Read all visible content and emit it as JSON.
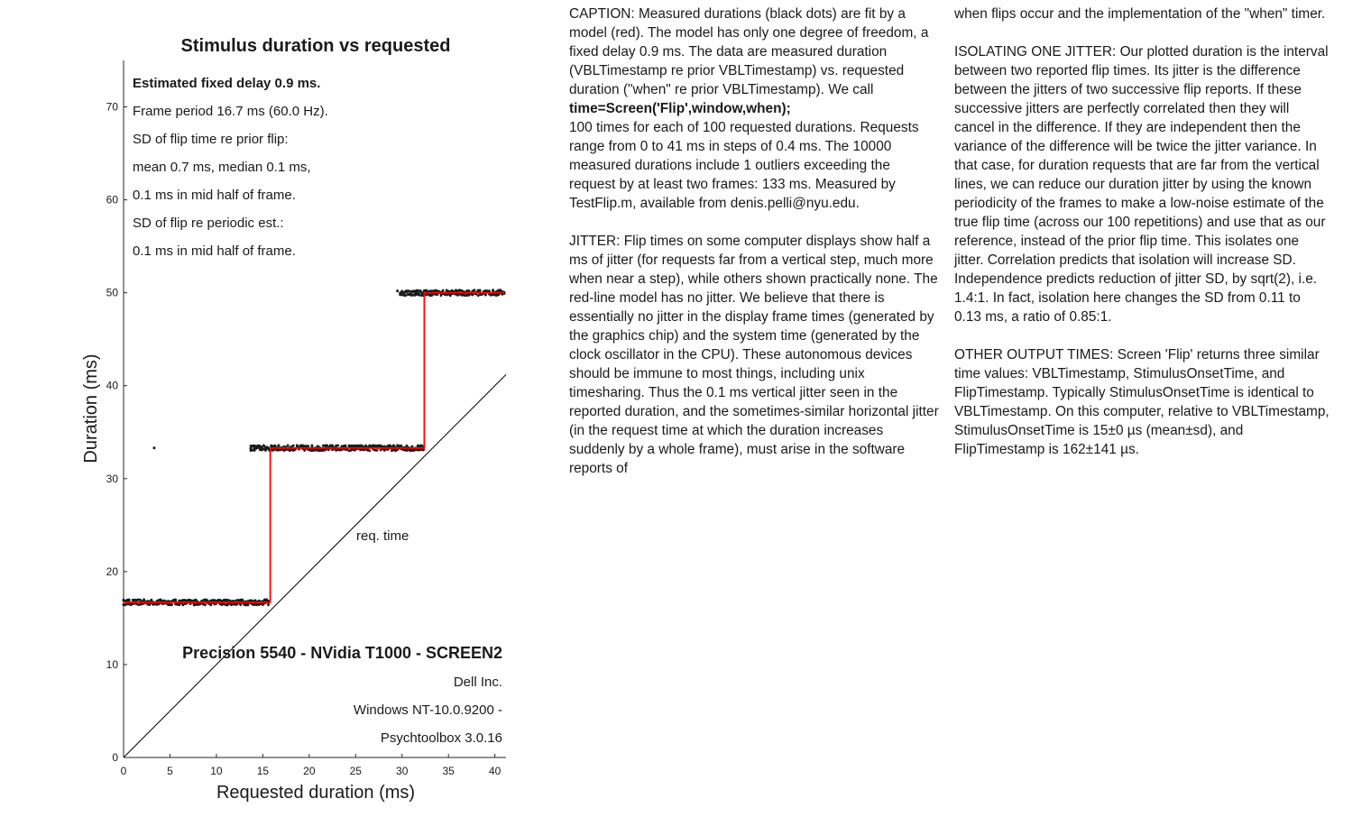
{
  "chart_data": {
    "type": "scatter",
    "title": "Stimulus duration vs requested",
    "xlabel": "Requested duration (ms)",
    "ylabel": "Duration (ms)",
    "xlim": [
      0,
      41.2
    ],
    "ylim": [
      0,
      75
    ],
    "xticks": [
      0,
      5,
      10,
      15,
      20,
      25,
      30,
      35,
      40
    ],
    "yticks": [
      0,
      10,
      20,
      30,
      40,
      50,
      60,
      70
    ],
    "grid": false,
    "legend": "none",
    "colors": {
      "data": "#1a1a1a",
      "model": "#ff0000",
      "identity": "#000000"
    },
    "series": [
      {
        "kind": "scatter",
        "description": "measured durations (black dots)",
        "clusters": [
          {
            "x_range": [
              0,
              15.6
            ],
            "y": 16.7,
            "spread": 0.3
          },
          {
            "x_range": [
              13.7,
              32.4
            ],
            "y": 33.3,
            "spread": 0.3
          },
          {
            "x_range": [
              29.8,
              41.0
            ],
            "y": 50.0,
            "spread": 0.3
          }
        ],
        "outliers": [
          {
            "x": 3.3,
            "y": 33.3
          },
          {
            "x": 29.5,
            "y": 50.2
          },
          {
            "x": 29.9,
            "y": 50.0
          }
        ]
      },
      {
        "kind": "step-line",
        "description": "model (red)",
        "points": [
          [
            0,
            16.7
          ],
          [
            15.8,
            16.7
          ],
          [
            15.8,
            33.3
          ],
          [
            32.4,
            33.3
          ],
          [
            32.4,
            50.0
          ],
          [
            41.0,
            50.0
          ]
        ]
      },
      {
        "kind": "line",
        "description": "requested time",
        "points": [
          [
            0,
            0
          ],
          [
            41.2,
            41.2
          ]
        ]
      }
    ],
    "annotations": {
      "identity_label": "req. time",
      "stats": [
        {
          "text": "Estimated fixed delay 0.9 ms.",
          "bold": true
        },
        {
          "text": "Frame period 16.7 ms (60.0 Hz).",
          "bold": false
        },
        {
          "text": "SD of flip time re prior flip:",
          "bold": false
        },
        {
          "text": "mean 0.7 ms, median 0.1 ms,",
          "bold": false
        },
        {
          "text": "0.1 ms in mid half of frame.",
          "bold": false
        },
        {
          "text": "SD of flip re periodic est.:",
          "bold": false
        },
        {
          "text": "0.1 ms in mid half of frame.",
          "bold": false
        }
      ],
      "system": {
        "title": "Precision 5540 - NVidia T1000 - SCREEN2",
        "lines": [
          "Dell Inc.",
          "Windows NT-10.0.9200 -",
          "Psychtoolbox 3.0.16"
        ]
      }
    }
  },
  "caption": {
    "col1": [
      {
        "before": "CAPTION: Measured durations (black dots) are fit by a model (red). The model has only one degree of freedom, a fixed delay 0.9 ms. The data are measured duration (VBLTimestamp re prior VBLTimestamp) vs. requested duration (\"when\" re prior VBLTimestamp). We call",
        "code": "time=Screen('Flip',window,when);",
        "after": "100 times for each of 100 requested durations. Requests range from 0 to 41 ms in steps of 0.4 ms. The 10000 measured durations include 1 outliers exceeding the request by at least two frames: 133  ms. Measured by TestFlip.m, available from denis.pelli@nyu.edu."
      },
      "JITTER: Flip times on some computer displays show half a ms of jitter (for requests far from a vertical step, much more when near a step), while others shown practically none. The red-line model has no jitter. We believe that there is essentially no jitter in the display frame times (generated by the graphics chip) and the system time (generated by the clock oscillator in the CPU). These autonomous devices should be immune to most things, including unix timesharing. Thus the 0.1 ms vertical jitter seen in the reported duration, and the sometimes-similar horizontal jitter (in the request time at which the duration increases suddenly by a whole frame), must arise in the software reports of"
    ],
    "col2": [
      "when flips occur and the implementation of the \"when\" timer.",
      "ISOLATING ONE JITTER: Our plotted duration is the interval between two reported flip times. Its jitter is the difference between the  jitters of two successive flip reports. If these successive jitters are perfectly correlated then they will cancel in the difference. If they are independent then the variance of the difference will be twice the jitter variance. In that case, for duration requests that are far from the vertical lines, we can reduce our duration jitter by using the known periodicity of the frames to make a low-noise estimate of the true flip time (across our 100 repetitions) and use that as our reference, instead of the prior flip time. This isolates one jitter. Correlation predicts that isolation will increase SD. Independence predicts reduction of jitter SD, by sqrt(2), i.e. 1.4:1. In fact, isolation here changes the SD from 0.11 to 0.13 ms, a ratio of 0.85:1.",
      "OTHER OUTPUT TIMES: Screen 'Flip' returns three similar time values: VBLTimestamp, StimulusOnsetTime, and FlipTimestamp. Typically StimulusOnsetTime is identical to VBLTimestamp. On this computer, relative to VBLTimestamp, StimulusOnsetTime is 15±0 µs (mean±sd), and FlipTimestamp is 162±141 µs."
    ]
  }
}
